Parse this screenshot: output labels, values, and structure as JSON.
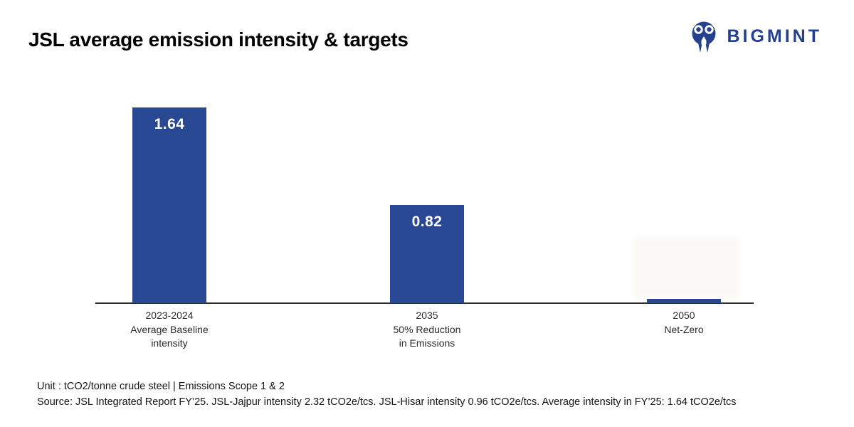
{
  "header": {
    "title": "JSL average emission intensity & targets",
    "brand": {
      "name": "BIGMINT",
      "color": "#24408f",
      "icon": "bigmint-people-icon"
    }
  },
  "chart_data": {
    "type": "bar",
    "title": "JSL average emission intensity & targets",
    "xlabel": "",
    "ylabel": "",
    "unit": "tCO2/tonne crude steel",
    "categories": [
      [
        "2023-2024",
        "Average Baseline",
        "intensity"
      ],
      [
        "2035",
        "50% Reduction",
        "in Emissions"
      ],
      [
        "2050",
        "Net-Zero"
      ]
    ],
    "values": [
      1.64,
      0.82,
      0
    ],
    "value_labels": [
      "1.64",
      "0.82",
      ""
    ],
    "ylim": [
      0,
      1.64
    ],
    "bar_color": "#284894",
    "grid": false,
    "legend": false,
    "axis_color": "#2e2e2e"
  },
  "footer": {
    "line1": "Unit : tCO2/tonne crude steel  | Emissions Scope 1 & 2",
    "line2": "Source: JSL Integrated Report FY’25. JSL-Jajpur intensity 2.32 tCO2e/tcs. JSL-Hisar intensity 0.96 tCO2e/tcs. Average intensity in FY’25: 1.64 tCO2e/tcs"
  }
}
